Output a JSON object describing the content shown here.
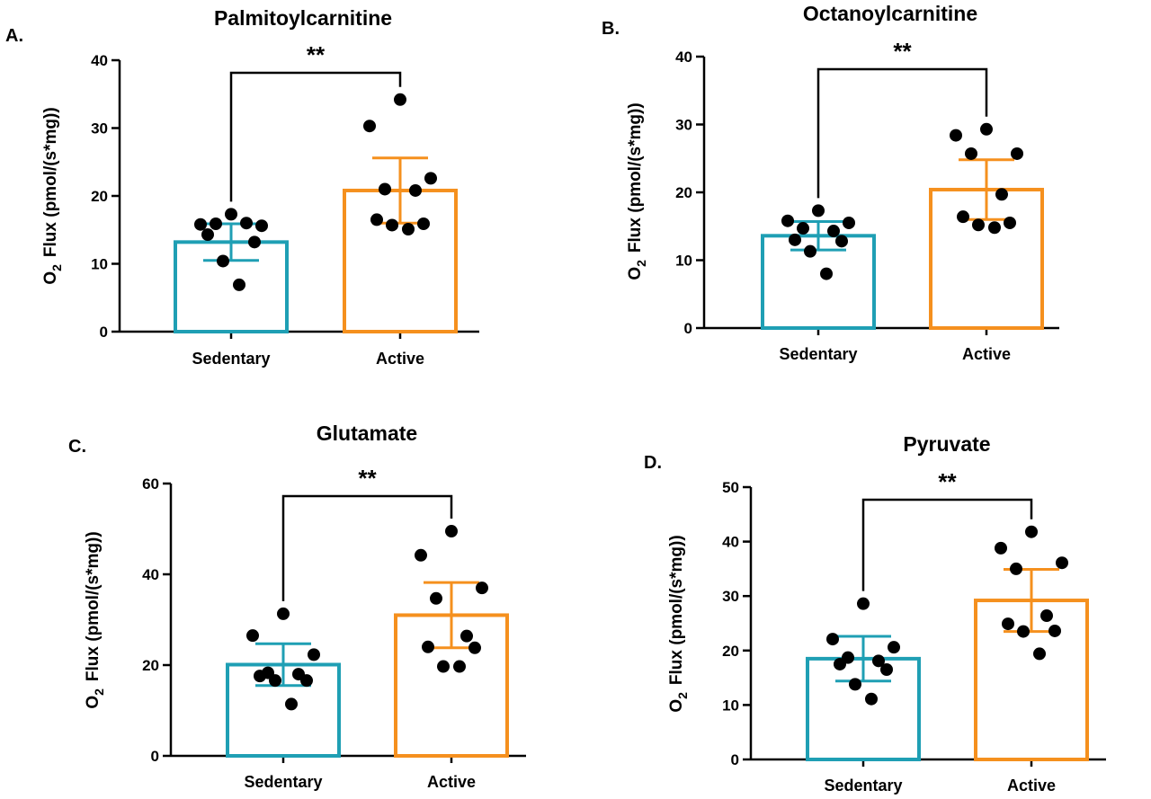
{
  "colors": {
    "sedentary": "#1f9fb4",
    "active": "#f5901e",
    "point": "#000000",
    "axis": "#000000"
  },
  "chart_data": [
    {
      "type": "bar",
      "panel": "A.",
      "title": "Palmitoylcarnitine",
      "ylabel_main": "O",
      "ylabel_sub": "2",
      "ylabel_rest": "Flux (pmol/(s*mg))",
      "ylim": [
        0,
        40
      ],
      "yticks": [
        0,
        10,
        20,
        30,
        40
      ],
      "categories": [
        "Sedentary",
        "Active"
      ],
      "values": [
        13.2,
        20.8
      ],
      "sd": [
        2.7,
        4.8
      ],
      "points": [
        [
          17.3,
          15.8,
          15.6,
          15.9,
          16.0,
          14.3,
          13.2,
          10.4,
          6.9
        ],
        [
          34.2,
          30.3,
          22.6,
          21.0,
          20.8,
          16.5,
          15.9,
          15.7,
          15.1
        ]
      ],
      "significance": "**"
    },
    {
      "type": "bar",
      "panel": "B.",
      "title": "Octanoylcarnitine",
      "ylabel_main": "O",
      "ylabel_sub": "2",
      "ylabel_rest": "Flux (pmol/(s*mg))",
      "ylim": [
        0,
        40
      ],
      "yticks": [
        0,
        10,
        20,
        30,
        40
      ],
      "categories": [
        "Sedentary",
        "Active"
      ],
      "values": [
        13.6,
        20.4
      ],
      "sd": [
        2.1,
        4.4
      ],
      "points": [
        [
          17.3,
          15.8,
          15.5,
          14.7,
          14.3,
          13.0,
          12.8,
          11.3,
          8.0
        ],
        [
          29.3,
          28.4,
          25.7,
          25.7,
          19.7,
          16.4,
          15.5,
          15.2,
          14.8
        ]
      ],
      "significance": "**"
    },
    {
      "type": "bar",
      "panel": "C.",
      "title": "Glutamate",
      "ylabel_main": "O",
      "ylabel_sub": "2",
      "ylabel_rest": "Flux (pmol/(s*mg))",
      "ylim": [
        0,
        60
      ],
      "yticks": [
        0,
        20,
        40,
        60
      ],
      "categories": [
        "Sedentary",
        "Active"
      ],
      "values": [
        20.1,
        31.0
      ],
      "sd": [
        4.6,
        7.2
      ],
      "points": [
        [
          31.3,
          26.5,
          22.3,
          18.3,
          18.0,
          17.6,
          16.6,
          16.6,
          11.4
        ],
        [
          49.5,
          44.2,
          37.0,
          34.7,
          26.4,
          24.0,
          23.8,
          19.7,
          19.7
        ]
      ],
      "significance": "**"
    },
    {
      "type": "bar",
      "panel": "D.",
      "title": "Pyruvate",
      "ylabel_main": "O",
      "ylabel_sub": "2",
      "ylabel_rest": "Flux (pmol/(s*mg))",
      "ylim": [
        0,
        50
      ],
      "yticks": [
        0,
        10,
        20,
        30,
        40,
        50
      ],
      "categories": [
        "Sedentary",
        "Active"
      ],
      "values": [
        18.5,
        29.2
      ],
      "sd": [
        4.1,
        5.7
      ],
      "points": [
        [
          28.6,
          22.1,
          20.6,
          18.7,
          18.1,
          17.5,
          16.5,
          13.8,
          11.1
        ],
        [
          41.8,
          38.8,
          36.1,
          35.0,
          26.4,
          24.9,
          23.6,
          23.5,
          19.4
        ]
      ],
      "significance": "**"
    }
  ]
}
